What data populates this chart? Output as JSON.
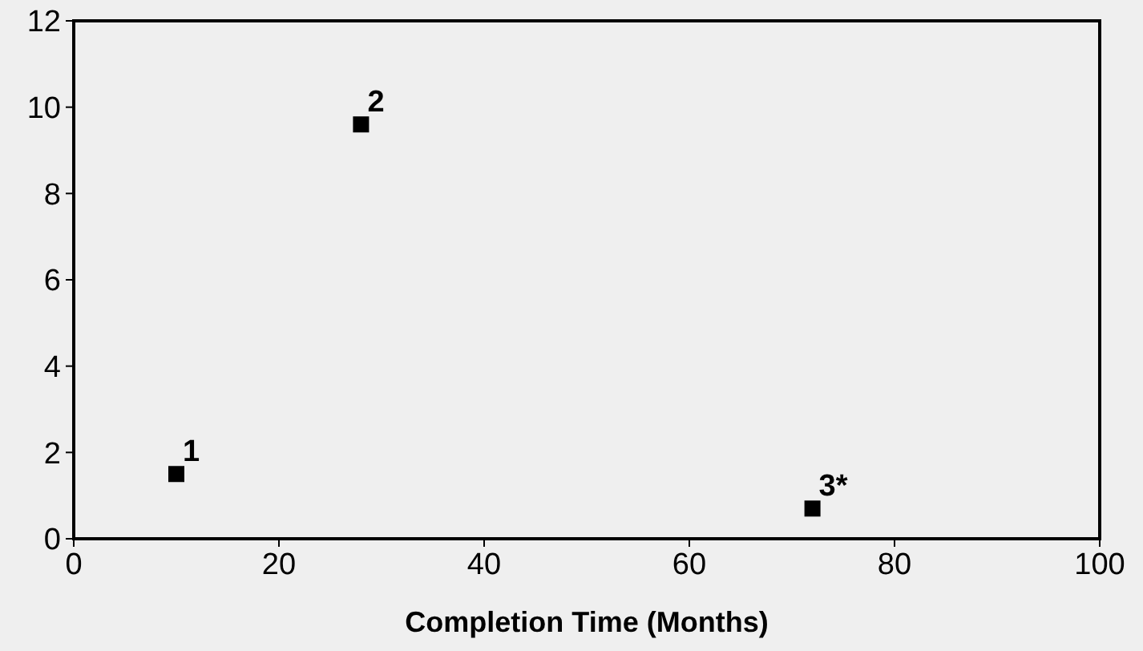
{
  "chart_data": {
    "type": "scatter",
    "xlabel": "Completion Time (Months)",
    "x": [
      10,
      28,
      72
    ],
    "values": [
      1.5,
      9.6,
      0.7
    ],
    "color": "#000000",
    "marker": "square",
    "xlim": [
      0,
      100
    ],
    "xticks": [
      0,
      20,
      40,
      60,
      80,
      100
    ],
    "ylim": [
      0,
      12
    ],
    "yticks": [
      0,
      2,
      4,
      6,
      8,
      10,
      12
    ],
    "grid": false,
    "annotations": [
      {
        "text": "1",
        "x": 10,
        "y": 1.5
      },
      {
        "text": "2",
        "x": 28,
        "y": 9.6
      },
      {
        "text": "3*",
        "x": 72,
        "y": 0.7
      }
    ]
  }
}
